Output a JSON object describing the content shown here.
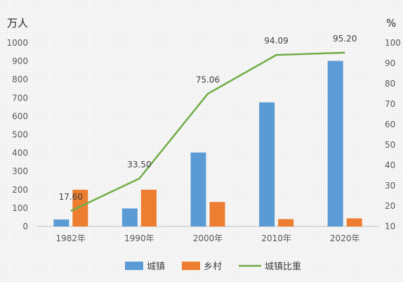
{
  "chart_data": {
    "type": "bar",
    "title": "",
    "categories": [
      "1982年",
      "1990年",
      "2000年",
      "2010年",
      "2020年"
    ],
    "y_left": {
      "unit": "万人",
      "min": 0,
      "max": 1000,
      "step": 100
    },
    "y_right": {
      "unit": "%",
      "min": 10,
      "max": 100,
      "step": 10
    },
    "series": [
      {
        "name": "城镇",
        "type": "bar",
        "axis": "left",
        "color": "#5b9bd5",
        "values": [
          38,
          98,
          403,
          676,
          902
        ]
      },
      {
        "name": "乡村",
        "type": "bar",
        "axis": "left",
        "color": "#ed7d31",
        "values": [
          200,
          200,
          133,
          40,
          44
        ]
      },
      {
        "name": "城镇比重",
        "type": "line",
        "axis": "right",
        "color": "#70ad47",
        "values": [
          17.6,
          33.5,
          75.06,
          94.09,
          95.2
        ],
        "labels": [
          "17.60",
          "33.50",
          "75.06",
          "94.09",
          "95.20"
        ]
      }
    ],
    "legend": {
      "position": "bottom",
      "items": [
        "城镇",
        "乡村",
        "城镇比重"
      ]
    },
    "grid": false
  }
}
